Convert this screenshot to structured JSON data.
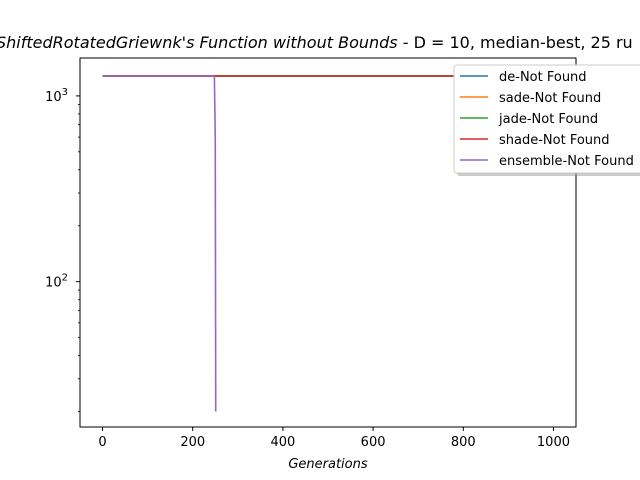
{
  "chart_data": {
    "type": "line",
    "title_italic": "ShiftedRotatedGriewnk's Function without Bounds",
    "title_rest": "  - D = 10, median-best, 25 ru",
    "xlabel": "Generations",
    "ylabel": "",
    "x_scale": "linear",
    "y_scale": "log",
    "xlim": [
      -50,
      1050
    ],
    "ylim": [
      16.5,
      1600
    ],
    "x_ticks": [
      0,
      200,
      400,
      600,
      800,
      1000
    ],
    "x_tick_labels": [
      "0",
      "200",
      "400",
      "600",
      "800",
      "1000"
    ],
    "y_ticks": [
      100,
      1000
    ],
    "y_tick_labels": [
      "10^2",
      "10^3"
    ],
    "legend_position": "upper right",
    "series": [
      {
        "name": "de-Not Found",
        "color": "#1f77b4",
        "x": [
          0,
          250,
          500,
          750,
          1000
        ],
        "y": [
          1280,
          1280,
          1280,
          1280,
          1280
        ]
      },
      {
        "name": "sade-Not Found",
        "color": "#ff7f0e",
        "x": [
          0,
          250,
          500,
          750,
          1000
        ],
        "y": [
          1280,
          1280,
          1280,
          1280,
          1280
        ]
      },
      {
        "name": "jade-Not Found",
        "color": "#2ca02c",
        "x": [
          0,
          250,
          500,
          750,
          1000
        ],
        "y": [
          1280,
          1280,
          1280,
          1280,
          1280
        ]
      },
      {
        "name": "shade-Not Found",
        "color": "#d62728",
        "x": [
          0,
          250,
          500,
          750,
          1000
        ],
        "y": [
          1280,
          1280,
          1280,
          1280,
          1280
        ]
      },
      {
        "name": "ensemble-Not Found",
        "color": "#9467bd",
        "x": [
          0,
          248,
          250,
          251
        ],
        "y": [
          1280,
          1280,
          600,
          20
        ]
      }
    ]
  }
}
